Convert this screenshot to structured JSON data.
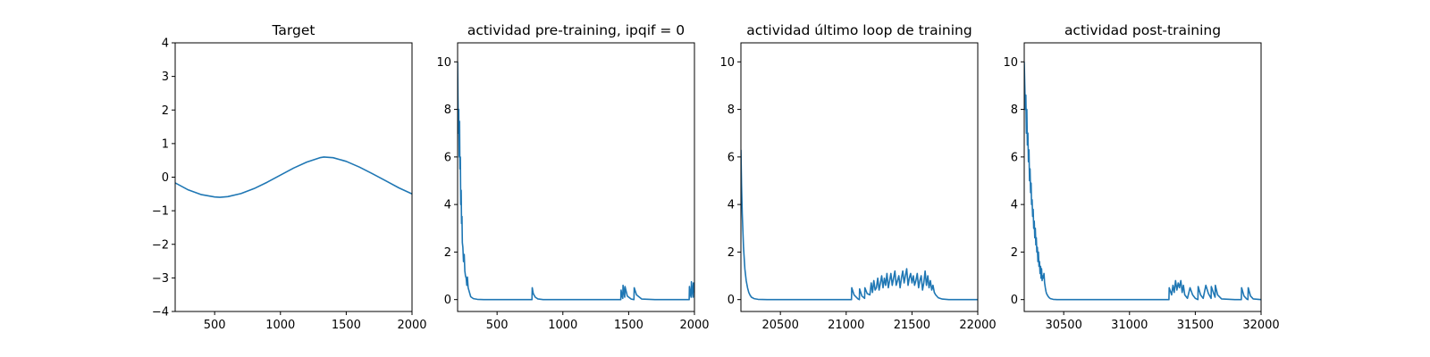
{
  "chart_data": [
    {
      "type": "line",
      "title": "Target",
      "xlim": [
        200,
        2000
      ],
      "ylim": [
        -4,
        4
      ],
      "xticks": [
        500,
        1000,
        1500,
        2000
      ],
      "xtick_labels": [
        "500",
        "1000",
        "1500",
        "2000"
      ],
      "yticks": [
        4,
        3,
        2,
        1,
        0,
        -1,
        -2,
        -3,
        -4
      ],
      "ytick_labels": [
        "4",
        "3",
        "2",
        "1",
        "0",
        "−1",
        "−2",
        "−3",
        "−4"
      ],
      "color": "#1f77b4",
      "x": [
        200,
        300,
        400,
        500,
        540,
        600,
        700,
        800,
        900,
        1000,
        1100,
        1200,
        1300,
        1330,
        1400,
        1500,
        1600,
        1700,
        1800,
        1900,
        2000
      ],
      "y": [
        -0.17,
        -0.38,
        -0.52,
        -0.59,
        -0.6,
        -0.58,
        -0.49,
        -0.34,
        -0.15,
        0.06,
        0.27,
        0.45,
        0.58,
        0.6,
        0.58,
        0.47,
        0.3,
        0.1,
        -0.11,
        -0.32,
        -0.5
      ]
    },
    {
      "type": "line",
      "title": "actividad pre-training, ipqif = 0",
      "xlim": [
        200,
        2000
      ],
      "ylim": [
        -0.5,
        10.8
      ],
      "xticks": [
        500,
        1000,
        1500,
        2000
      ],
      "xtick_labels": [
        "500",
        "1000",
        "1500",
        "2000"
      ],
      "yticks": [
        0,
        2,
        4,
        6,
        8,
        10
      ],
      "ytick_labels": [
        "0",
        "2",
        "4",
        "6",
        "8",
        "10"
      ],
      "color": "#1f77b4",
      "x": [
        200,
        203,
        206,
        209,
        212,
        215,
        218,
        221,
        224,
        227,
        230,
        233,
        236,
        240,
        245,
        250,
        255,
        260,
        265,
        270,
        275,
        280,
        290,
        300,
        320,
        350,
        400,
        500,
        600,
        700,
        765,
        767,
        775,
        790,
        810,
        850,
        1000,
        1200,
        1400,
        1440,
        1442,
        1450,
        1455,
        1457,
        1465,
        1470,
        1472,
        1490,
        1520,
        1540,
        1542,
        1560,
        1600,
        1700,
        1800,
        1900,
        1960,
        1962,
        1970,
        1975,
        1977,
        1985,
        1990,
        1992,
        2000
      ],
      "y": [
        10.0,
        8.5,
        7.0,
        8.0,
        6.0,
        7.5,
        5.5,
        6.0,
        4.0,
        4.6,
        3.2,
        3.5,
        2.4,
        2.2,
        1.6,
        1.9,
        1.2,
        1.0,
        0.9,
        0.6,
        0.95,
        0.5,
        0.3,
        0.12,
        0.04,
        0.01,
        0.0,
        0.0,
        0.0,
        0.0,
        0.0,
        0.5,
        0.25,
        0.1,
        0.03,
        0.0,
        0.0,
        0.0,
        0.0,
        0.0,
        0.4,
        0.15,
        0.05,
        0.6,
        0.3,
        0.1,
        0.55,
        0.15,
        0.02,
        0.0,
        0.5,
        0.2,
        0.02,
        0.0,
        0.0,
        0.0,
        0.0,
        0.55,
        0.2,
        0.1,
        0.75,
        0.3,
        0.1,
        0.7,
        0.3
      ]
    },
    {
      "type": "line",
      "title": "actividad último loop de training",
      "xlim": [
        20200,
        22000
      ],
      "ylim": [
        -0.5,
        10.8
      ],
      "xticks": [
        20500,
        21000,
        21500,
        22000
      ],
      "xtick_labels": [
        "20500",
        "21000",
        "21500",
        "22000"
      ],
      "yticks": [
        0,
        2,
        4,
        6,
        8,
        10
      ],
      "ytick_labels": [
        "0",
        "2",
        "4",
        "6",
        "8",
        "10"
      ],
      "color": "#1f77b4",
      "x": [
        20200,
        20205,
        20210,
        20220,
        20230,
        20240,
        20250,
        20260,
        20270,
        20280,
        20300,
        20330,
        20400,
        20700,
        21000,
        21040,
        21042,
        21060,
        21090,
        21100,
        21102,
        21120,
        21140,
        21142,
        21160,
        21180,
        21190,
        21200,
        21210,
        21220,
        21230,
        21240,
        21250,
        21260,
        21270,
        21280,
        21290,
        21300,
        21310,
        21320,
        21330,
        21340,
        21350,
        21360,
        21370,
        21380,
        21390,
        21400,
        21410,
        21420,
        21430,
        21440,
        21450,
        21460,
        21470,
        21480,
        21490,
        21500,
        21510,
        21520,
        21530,
        21540,
        21550,
        21560,
        21570,
        21580,
        21590,
        21600,
        21610,
        21620,
        21630,
        21640,
        21650,
        21660,
        21670,
        21680,
        21700,
        21730,
        21780,
        21900,
        22000
      ],
      "y": [
        6.3,
        4.8,
        3.6,
        2.2,
        1.3,
        0.8,
        0.5,
        0.3,
        0.18,
        0.1,
        0.04,
        0.01,
        0.0,
        0.0,
        0.0,
        0.0,
        0.5,
        0.2,
        0.03,
        0.0,
        0.45,
        0.15,
        0.05,
        0.5,
        0.25,
        0.2,
        0.7,
        0.3,
        0.8,
        0.4,
        0.5,
        0.9,
        0.4,
        0.7,
        1.0,
        0.5,
        0.9,
        0.6,
        1.1,
        0.5,
        0.8,
        1.1,
        0.6,
        0.9,
        1.2,
        0.6,
        0.8,
        1.0,
        0.5,
        0.9,
        1.2,
        0.7,
        1.0,
        1.3,
        0.6,
        0.9,
        1.1,
        0.7,
        1.0,
        0.6,
        0.8,
        1.1,
        0.5,
        0.8,
        1.0,
        0.4,
        0.7,
        1.2,
        0.6,
        1.0,
        0.5,
        0.8,
        0.4,
        0.6,
        0.3,
        0.2,
        0.08,
        0.02,
        0.0,
        0.0,
        0.0
      ]
    },
    {
      "type": "line",
      "title": "actividad post-training",
      "xlim": [
        30200,
        32000
      ],
      "ylim": [
        -0.5,
        10.8
      ],
      "xticks": [
        30500,
        31000,
        31500,
        32000
      ],
      "xtick_labels": [
        "30500",
        "31000",
        "31500",
        "32000"
      ],
      "yticks": [
        0,
        2,
        4,
        6,
        8,
        10
      ],
      "ytick_labels": [
        "0",
        "2",
        "4",
        "6",
        "8",
        "10"
      ],
      "color": "#1f77b4",
      "x": [
        30200,
        30204,
        30208,
        30212,
        30216,
        30220,
        30224,
        30228,
        30232,
        30236,
        30240,
        30244,
        30248,
        30252,
        30256,
        30260,
        30264,
        30268,
        30272,
        30276,
        30280,
        30284,
        30288,
        30292,
        30296,
        30300,
        30304,
        30308,
        30312,
        30316,
        30320,
        30324,
        30328,
        30332,
        30336,
        30340,
        30345,
        30350,
        30355,
        30360,
        30365,
        30370,
        30380,
        30390,
        30400,
        30420,
        30450,
        30500,
        30700,
        31000,
        31300,
        31302,
        31320,
        31330,
        31340,
        31350,
        31360,
        31370,
        31380,
        31390,
        31400,
        31410,
        31420,
        31440,
        31460,
        31480,
        31500,
        31520,
        31522,
        31540,
        31560,
        31580,
        31600,
        31620,
        31622,
        31640,
        31650,
        31652,
        31670,
        31700,
        31800,
        31850,
        31852,
        31870,
        31890,
        31900,
        31902,
        31920,
        31940,
        32000
      ],
      "y": [
        10.0,
        9.0,
        8.0,
        8.6,
        7.0,
        8.0,
        6.5,
        7.0,
        5.8,
        6.3,
        5.0,
        5.5,
        4.5,
        4.9,
        4.0,
        4.2,
        3.5,
        3.8,
        3.0,
        3.3,
        2.6,
        3.0,
        2.3,
        2.6,
        2.0,
        2.2,
        1.6,
        2.0,
        1.4,
        1.6,
        1.1,
        1.4,
        0.9,
        1.3,
        0.8,
        1.0,
        0.9,
        1.1,
        0.7,
        0.5,
        0.35,
        0.25,
        0.15,
        0.08,
        0.04,
        0.01,
        0.0,
        0.0,
        0.0,
        0.0,
        0.0,
        0.5,
        0.2,
        0.6,
        0.3,
        0.8,
        0.4,
        0.7,
        0.5,
        0.8,
        0.3,
        0.6,
        0.2,
        0.05,
        0.5,
        0.2,
        0.05,
        0.0,
        0.55,
        0.2,
        0.05,
        0.6,
        0.25,
        0.05,
        0.55,
        0.25,
        0.1,
        0.6,
        0.2,
        0.03,
        0.0,
        0.0,
        0.5,
        0.15,
        0.03,
        0.0,
        0.5,
        0.15,
        0.03,
        0.0
      ]
    }
  ]
}
